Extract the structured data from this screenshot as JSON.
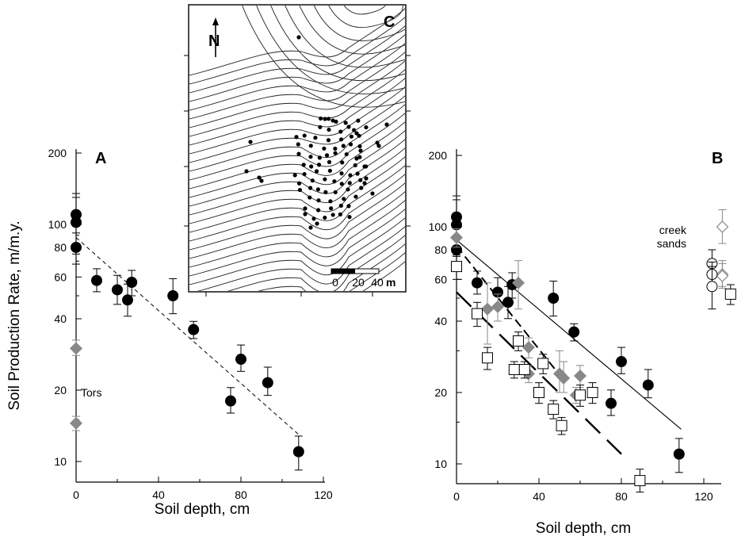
{
  "chart_data": [
    {
      "type": "scatter",
      "panel": "A",
      "xlabel": "Soil depth, cm",
      "ylabel": "Soil Production Rate, m/m.y.",
      "xlim": [
        0,
        120
      ],
      "ylim": [
        10,
        200
      ],
      "y_scale": "log",
      "x_ticks": [
        0,
        40,
        80,
        120
      ],
      "y_ticks": [
        10,
        20,
        40,
        60,
        80,
        100,
        200
      ],
      "grid": false,
      "annotation": "Tors",
      "series": [
        {
          "marker": "filled-circle",
          "color": "#000000",
          "points": [
            {
              "x": 0,
              "y": 110,
              "lo": 80,
              "hi": 135
            },
            {
              "x": 0,
              "y": 102,
              "lo": 75,
              "hi": 130
            },
            {
              "x": 0,
              "y": 80,
              "lo": 68,
              "hi": 92
            },
            {
              "x": 10,
              "y": 58,
              "lo": 52,
              "hi": 65
            },
            {
              "x": 20,
              "y": 53,
              "lo": 46,
              "hi": 61
            },
            {
              "x": 25,
              "y": 48,
              "lo": 41,
              "hi": 56
            },
            {
              "x": 27,
              "y": 57,
              "lo": 50,
              "hi": 64
            },
            {
              "x": 47,
              "y": 50,
              "lo": 42,
              "hi": 59
            },
            {
              "x": 57,
              "y": 36,
              "lo": 33,
              "hi": 39
            },
            {
              "x": 75,
              "y": 18,
              "lo": 16,
              "hi": 20.5
            },
            {
              "x": 80,
              "y": 27,
              "lo": 24,
              "hi": 31
            },
            {
              "x": 93,
              "y": 21.5,
              "lo": 19,
              "hi": 25
            },
            {
              "x": 108,
              "y": 11,
              "lo": 9.2,
              "hi": 12.8
            }
          ]
        },
        {
          "name": "Tors",
          "marker": "diamond",
          "color": "#888888",
          "points": [
            {
              "x": 0,
              "y": 30,
              "lo": 28,
              "hi": 32.5
            },
            {
              "x": 0,
              "y": 14.5,
              "lo": 13.5,
              "hi": 15.5
            }
          ]
        }
      ],
      "fit_lines": [
        {
          "style": "dashed-thin",
          "x": [
            0,
            108
          ],
          "y": [
            88,
            13
          ]
        }
      ]
    },
    {
      "type": "scatter",
      "panel": "B",
      "xlabel": "Soil depth, cm",
      "xlim": [
        0,
        130
      ],
      "ylim": [
        7,
        200
      ],
      "y_scale": "log",
      "x_ticks": [
        0,
        40,
        80,
        120
      ],
      "y_ticks": [
        10,
        20,
        40,
        60,
        80,
        100,
        200
      ],
      "grid": false,
      "annotation": "creek\nsands",
      "series": [
        {
          "marker": "filled-circle",
          "color": "#000000",
          "points": [
            {
              "x": 0,
              "y": 110,
              "lo": 80,
              "hi": 135
            },
            {
              "x": 0,
              "y": 102,
              "lo": 75,
              "hi": 130
            },
            {
              "x": 0,
              "y": 80,
              "lo": 68,
              "hi": 92
            },
            {
              "x": 10,
              "y": 58,
              "lo": 52,
              "hi": 65
            },
            {
              "x": 20,
              "y": 53,
              "lo": 46,
              "hi": 61
            },
            {
              "x": 25,
              "y": 48,
              "lo": 41,
              "hi": 56
            },
            {
              "x": 27,
              "y": 57,
              "lo": 50,
              "hi": 64
            },
            {
              "x": 47,
              "y": 50,
              "lo": 42,
              "hi": 59
            },
            {
              "x": 57,
              "y": 36,
              "lo": 33,
              "hi": 39
            },
            {
              "x": 75,
              "y": 18,
              "lo": 16,
              "hi": 20.5
            },
            {
              "x": 80,
              "y": 27,
              "lo": 24,
              "hi": 31
            },
            {
              "x": 93,
              "y": 21.5,
              "lo": 19,
              "hi": 25
            },
            {
              "x": 108,
              "y": 11,
              "lo": 9.2,
              "hi": 12.8
            }
          ]
        },
        {
          "marker": "diamond",
          "color": "#888888",
          "points": [
            {
              "x": 0,
              "y": 90,
              "lo": 82,
              "hi": 98
            },
            {
              "x": 15,
              "y": 45,
              "lo": 32,
              "hi": 58
            },
            {
              "x": 20,
              "y": 46,
              "lo": 40,
              "hi": 52
            },
            {
              "x": 30,
              "y": 58,
              "lo": 45,
              "hi": 72
            },
            {
              "x": 35,
              "y": 31,
              "lo": 28,
              "hi": 34
            },
            {
              "x": 35,
              "y": 24,
              "lo": 22,
              "hi": 26
            },
            {
              "x": 50,
              "y": 24,
              "lo": 20,
              "hi": 30
            },
            {
              "x": 52,
              "y": 23,
              "lo": 20,
              "hi": 27
            },
            {
              "x": 58,
              "y": 19.5,
              "lo": 18,
              "hi": 21
            },
            {
              "x": 60,
              "y": 23.5,
              "lo": 21,
              "hi": 26
            }
          ]
        },
        {
          "marker": "open-square",
          "color": "#000000",
          "points": [
            {
              "x": 0,
              "y": 68,
              "lo": 60,
              "hi": 76
            },
            {
              "x": 10,
              "y": 43,
              "lo": 38,
              "hi": 48
            },
            {
              "x": 15,
              "y": 28,
              "lo": 25,
              "hi": 31
            },
            {
              "x": 28,
              "y": 25,
              "lo": 23,
              "hi": 27
            },
            {
              "x": 30,
              "y": 33,
              "lo": 30,
              "hi": 36
            },
            {
              "x": 33,
              "y": 25,
              "lo": 23,
              "hi": 27
            },
            {
              "x": 40,
              "y": 20,
              "lo": 18,
              "hi": 22
            },
            {
              "x": 42,
              "y": 26.5,
              "lo": 24,
              "hi": 29
            },
            {
              "x": 47,
              "y": 17,
              "lo": 15.5,
              "hi": 18.5
            },
            {
              "x": 51,
              "y": 14.5,
              "lo": 13.3,
              "hi": 15.7
            },
            {
              "x": 60,
              "y": 19.5,
              "lo": 17.5,
              "hi": 21.5
            },
            {
              "x": 66,
              "y": 20,
              "lo": 18,
              "hi": 22
            },
            {
              "x": 89,
              "y": 8.5,
              "lo": 7.6,
              "hi": 9.5
            }
          ]
        },
        {
          "name": "creek sands",
          "marker": "open-diamond",
          "color": "#888888",
          "points": [
            {
              "x": 129,
              "y": 100,
              "lo": 85,
              "hi": 118
            },
            {
              "x": 129,
              "y": 63,
              "lo": 56,
              "hi": 72
            },
            {
              "x": 129,
              "y": 62,
              "lo": 55,
              "hi": 70
            }
          ]
        },
        {
          "name": "creek sands",
          "marker": "open-circle",
          "color": "#000000",
          "points": [
            {
              "x": 124,
              "y": 70,
              "lo": 62,
              "hi": 80
            },
            {
              "x": 124,
              "y": 63,
              "lo": 56,
              "hi": 71
            },
            {
              "x": 124,
              "y": 56,
              "lo": 45,
              "hi": 68
            }
          ]
        },
        {
          "name": "creek sands",
          "marker": "open-square",
          "color": "#000000",
          "points": [
            {
              "x": 133,
              "y": 52,
              "lo": 47,
              "hi": 57
            }
          ]
        }
      ],
      "fit_lines": [
        {
          "style": "solid-thin",
          "x": [
            0,
            109
          ],
          "y": [
            88,
            14
          ]
        },
        {
          "style": "dashed-medium",
          "x": [
            0,
            53
          ],
          "y": [
            83,
            22
          ]
        },
        {
          "style": "long-dashed-thick",
          "x": [
            0,
            80
          ],
          "y": [
            53,
            11
          ]
        }
      ]
    },
    {
      "type": "map",
      "panel": "C",
      "north_label": "N",
      "scale_bar_labels": [
        "0",
        "20",
        "40"
      ],
      "scale_bar_unit": "m"
    }
  ]
}
